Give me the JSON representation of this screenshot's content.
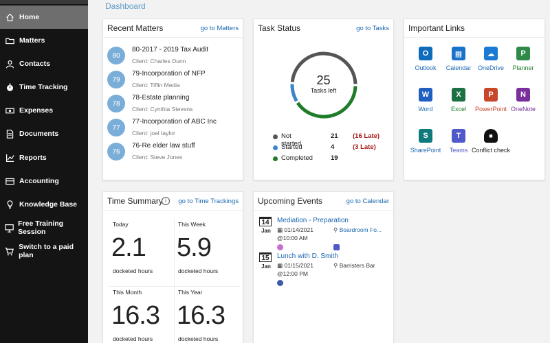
{
  "sidebar": {
    "items": [
      {
        "label": "Home",
        "icon": "home-icon"
      },
      {
        "label": "Matters",
        "icon": "folder-icon"
      },
      {
        "label": "Contacts",
        "icon": "person-icon"
      },
      {
        "label": "Time Tracking",
        "icon": "stopwatch-icon"
      },
      {
        "label": "Expenses",
        "icon": "money-icon"
      },
      {
        "label": "Documents",
        "icon": "documents-icon"
      },
      {
        "label": "Reports",
        "icon": "chart-icon"
      },
      {
        "label": "Accounting",
        "icon": "card-icon"
      },
      {
        "label": "Knowledge Base",
        "icon": "lightbulb-icon"
      },
      {
        "label": "Free Training Session",
        "icon": "presentation-icon"
      },
      {
        "label": "Switch to a paid plan",
        "icon": "cart-icon"
      }
    ]
  },
  "header": {
    "breadcrumb": "Dashboard"
  },
  "recent_matters": {
    "title": "Recent Matters",
    "link": "go to Matters",
    "items": [
      {
        "num": "80",
        "title": "80-2017 - 2019 Tax Audit",
        "client": "Client: Charles Dunn"
      },
      {
        "num": "79",
        "title": "79-Incorporation of NFP",
        "client": "Client: Tiffin Media"
      },
      {
        "num": "78",
        "title": "78-Estate planning",
        "client": "Client: Cynthia Stevens"
      },
      {
        "num": "77",
        "title": "77-Incorporation of ABC Inc",
        "client": "Client: joel taylor"
      },
      {
        "num": "76",
        "title": "76-Re elder law stuff",
        "client": "Client: Steve Jones"
      }
    ]
  },
  "task_status": {
    "title": "Task Status",
    "link": "go to Tasks",
    "total": "25",
    "total_label": "Tasks left",
    "rows": [
      {
        "label": "Not started",
        "count": "21",
        "late": "(16 Late)",
        "color": "#555555"
      },
      {
        "label": "Started",
        "count": "4",
        "late": "(3 Late)",
        "color": "#3b86c8"
      },
      {
        "label": "Completed",
        "count": "19",
        "late": "",
        "color": "#1f7d2a"
      }
    ]
  },
  "important_links": {
    "title": "Important Links",
    "apps": [
      {
        "name": "Outlook",
        "letter": "O",
        "color": "#0f6cbd",
        "text_color": "#1a67b0"
      },
      {
        "name": "Calendar",
        "letter": "▦",
        "color": "#1a73c8",
        "text_color": "#1a67b0"
      },
      {
        "name": "OneDrive",
        "letter": "☁",
        "color": "#1b7ad1",
        "text_color": "#1a67b0"
      },
      {
        "name": "Planner",
        "letter": "P",
        "color": "#2e8b47",
        "text_color": "#1f7d2a"
      },
      {
        "name": "Word",
        "letter": "W",
        "color": "#1f5fbf",
        "text_color": "#1a67b0"
      },
      {
        "name": "Excel",
        "letter": "X",
        "color": "#1d7044",
        "text_color": "#1f7d2a"
      },
      {
        "name": "PowerPoint",
        "letter": "P",
        "color": "#c8472b",
        "text_color": "#c8472b"
      },
      {
        "name": "OneNote",
        "letter": "N",
        "color": "#7a2f9c",
        "text_color": "#7a2f9c"
      },
      {
        "name": "SharePoint",
        "letter": "S",
        "color": "#0e7a7d",
        "text_color": "#1a67b0"
      },
      {
        "name": "Teams",
        "letter": "T",
        "color": "#5059c9",
        "text_color": "#5059c9"
      },
      {
        "name": "Conflict check",
        "letter": "🔒",
        "color": "#ffffff",
        "text_color": "#222222"
      }
    ]
  },
  "time_summary": {
    "title": "Time Summary",
    "link": "go to Time Trackings",
    "cells": [
      {
        "label": "Today",
        "value": "2.1",
        "unit": "docketed hours"
      },
      {
        "label": "This Week",
        "value": "5.9",
        "unit": "docketed hours"
      },
      {
        "label": "This Month",
        "value": "16.3",
        "unit": "docketed hours"
      },
      {
        "label": "This Year",
        "value": "16.3",
        "unit": "docketed hours"
      }
    ]
  },
  "upcoming_events": {
    "title": "Upcoming Events",
    "link": "go to Calendar",
    "events": [
      {
        "day": "14",
        "month": "Jan",
        "title": "Mediation - Preparation",
        "date": "01/14/2021",
        "location": "Boardroom Fo...",
        "time": "@10:00 AM"
      },
      {
        "day": "15",
        "month": "Jan",
        "title": "Lunch with D. Smith",
        "date": "01/15/2021",
        "location": "Barristers Bar",
        "time": "@12:00 PM"
      }
    ]
  },
  "colors": {
    "accent": "#1a67b0",
    "sidebar": "#141414",
    "sidebar_active": "#6e6e6e",
    "bubble": "#7aaed9",
    "late": "#a81818"
  }
}
